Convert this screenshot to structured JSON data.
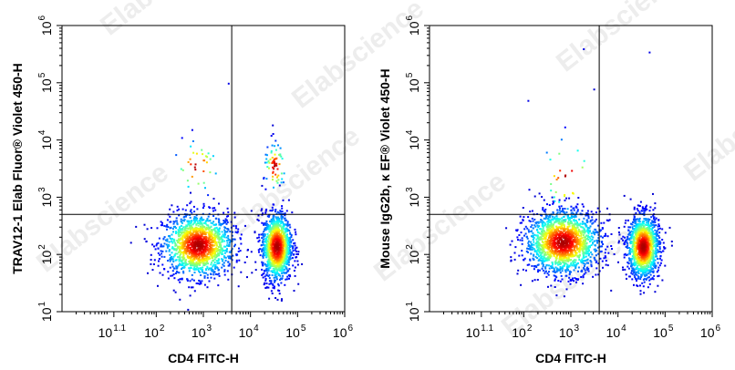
{
  "watermark_text": "Elabscience",
  "chart_data": [
    {
      "type": "scatter",
      "style": "density-pseudocolor",
      "xlabel": "CD4 FITC-H",
      "ylabel": "TRAV12-1 Elab Fluor® Violet 450-H",
      "x_scale": "log",
      "y_scale": "log",
      "xlim": [
        1,
        1000000
      ],
      "ylim": [
        10,
        1000000
      ],
      "x_ticks": [
        {
          "base": "10",
          "exp": "1.1",
          "value": 12.6
        },
        {
          "base": "10",
          "exp": "2",
          "value": 100
        },
        {
          "base": "10",
          "exp": "3",
          "value": 1000
        },
        {
          "base": "10",
          "exp": "4",
          "value": 10000
        },
        {
          "base": "10",
          "exp": "5",
          "value": 100000
        },
        {
          "base": "10",
          "exp": "6",
          "value": 1000000
        }
      ],
      "y_ticks": [
        {
          "base": "10",
          "exp": "1",
          "value": 10
        },
        {
          "base": "10",
          "exp": "2",
          "value": 100
        },
        {
          "base": "10",
          "exp": "3",
          "value": 1000
        },
        {
          "base": "10",
          "exp": "4",
          "value": 10000
        },
        {
          "base": "10",
          "exp": "5",
          "value": 100000
        },
        {
          "base": "10",
          "exp": "6",
          "value": 1000000
        }
      ],
      "quadrant_gate": {
        "x": 4000,
        "y": 500
      },
      "populations": [
        {
          "cx": 750,
          "cy": 150,
          "sx_dec": 0.38,
          "sy_dec": 0.28,
          "n": 1500
        },
        {
          "cx": 35000,
          "cy": 140,
          "sx_dec": 0.16,
          "sy_dec": 0.3,
          "n": 1300
        },
        {
          "cx": 32000,
          "cy": 3500,
          "sx_dec": 0.12,
          "sy_dec": 0.22,
          "n": 70
        },
        {
          "cx": 700,
          "cy": 3500,
          "sx_dec": 0.25,
          "sy_dec": 0.25,
          "n": 35
        }
      ],
      "outliers": [
        {
          "x": 3300,
          "y": 100000
        }
      ]
    },
    {
      "type": "scatter",
      "style": "density-pseudocolor",
      "xlabel": "CD4 FITC-H",
      "ylabel": "Mouse IgG2b, κ EF® Violet 450-H",
      "x_scale": "log",
      "y_scale": "log",
      "xlim": [
        1,
        1000000
      ],
      "ylim": [
        10,
        1000000
      ],
      "x_ticks": [
        {
          "base": "10",
          "exp": "1.1",
          "value": 12.6
        },
        {
          "base": "10",
          "exp": "2",
          "value": 100
        },
        {
          "base": "10",
          "exp": "3",
          "value": 1000
        },
        {
          "base": "10",
          "exp": "4",
          "value": 10000
        },
        {
          "base": "10",
          "exp": "5",
          "value": 100000
        },
        {
          "base": "10",
          "exp": "6",
          "value": 1000000
        }
      ],
      "y_ticks": [
        {
          "base": "10",
          "exp": "1",
          "value": 10
        },
        {
          "base": "10",
          "exp": "2",
          "value": 100
        },
        {
          "base": "10",
          "exp": "3",
          "value": 1000
        },
        {
          "base": "10",
          "exp": "4",
          "value": 10000
        },
        {
          "base": "10",
          "exp": "5",
          "value": 100000
        },
        {
          "base": "10",
          "exp": "6",
          "value": 1000000
        }
      ],
      "quadrant_gate": {
        "x": 4000,
        "y": 500
      },
      "populations": [
        {
          "cx": 650,
          "cy": 170,
          "sx_dec": 0.4,
          "sy_dec": 0.28,
          "n": 1700
        },
        {
          "cx": 33000,
          "cy": 140,
          "sx_dec": 0.17,
          "sy_dec": 0.28,
          "n": 1300
        },
        {
          "cx": 800,
          "cy": 2500,
          "sx_dec": 0.3,
          "sy_dec": 0.35,
          "n": 30
        }
      ],
      "outliers": [
        {
          "x": 1800,
          "y": 400000
        },
        {
          "x": 45000,
          "y": 350000
        },
        {
          "x": 120,
          "y": 50000
        }
      ]
    }
  ]
}
